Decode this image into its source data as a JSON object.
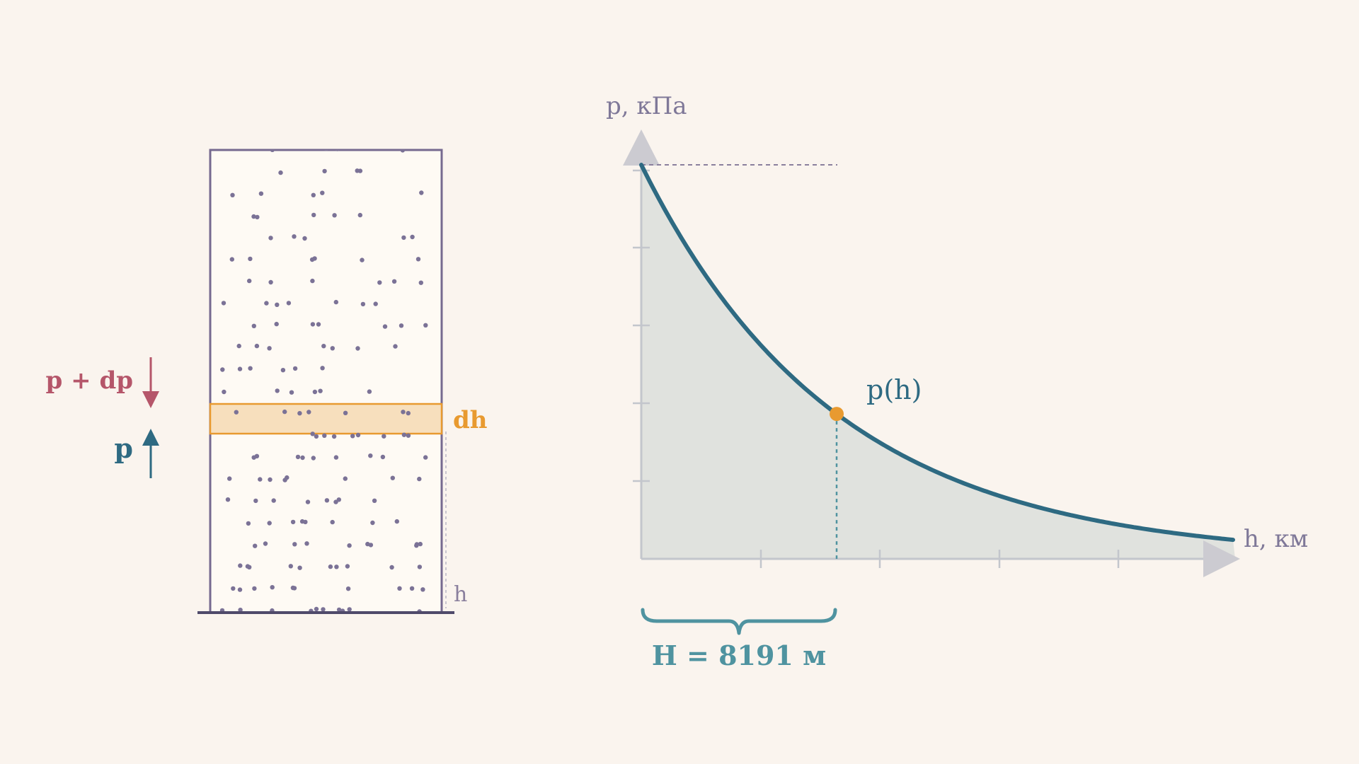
{
  "column": {
    "force_top_label": "p + dp",
    "force_bottom_label": "p",
    "layer_label": "dh",
    "height_label": "h"
  },
  "graph": {
    "y_axis_label": "p, кПа",
    "x_axis_label": "h, км",
    "point_label": "p(h)",
    "scale_height_label": "H = 8191 м"
  },
  "chart_data": {
    "type": "area",
    "function": "p(h) = p0 · exp(−h / H)",
    "scale_height_m": 8191,
    "marked_point": {
      "h": "H"
    },
    "colors": {
      "curve": "#2e6a82",
      "fill": "#e0e2de",
      "point": "#e89a30",
      "down_force": "#b5566a",
      "up_force": "#2e6a82",
      "layer": "#f7dfbd",
      "layer_border": "#e89a30",
      "brace": "#4f93a0",
      "axes": "#c3c6cc",
      "column_border": "#75698f"
    }
  }
}
